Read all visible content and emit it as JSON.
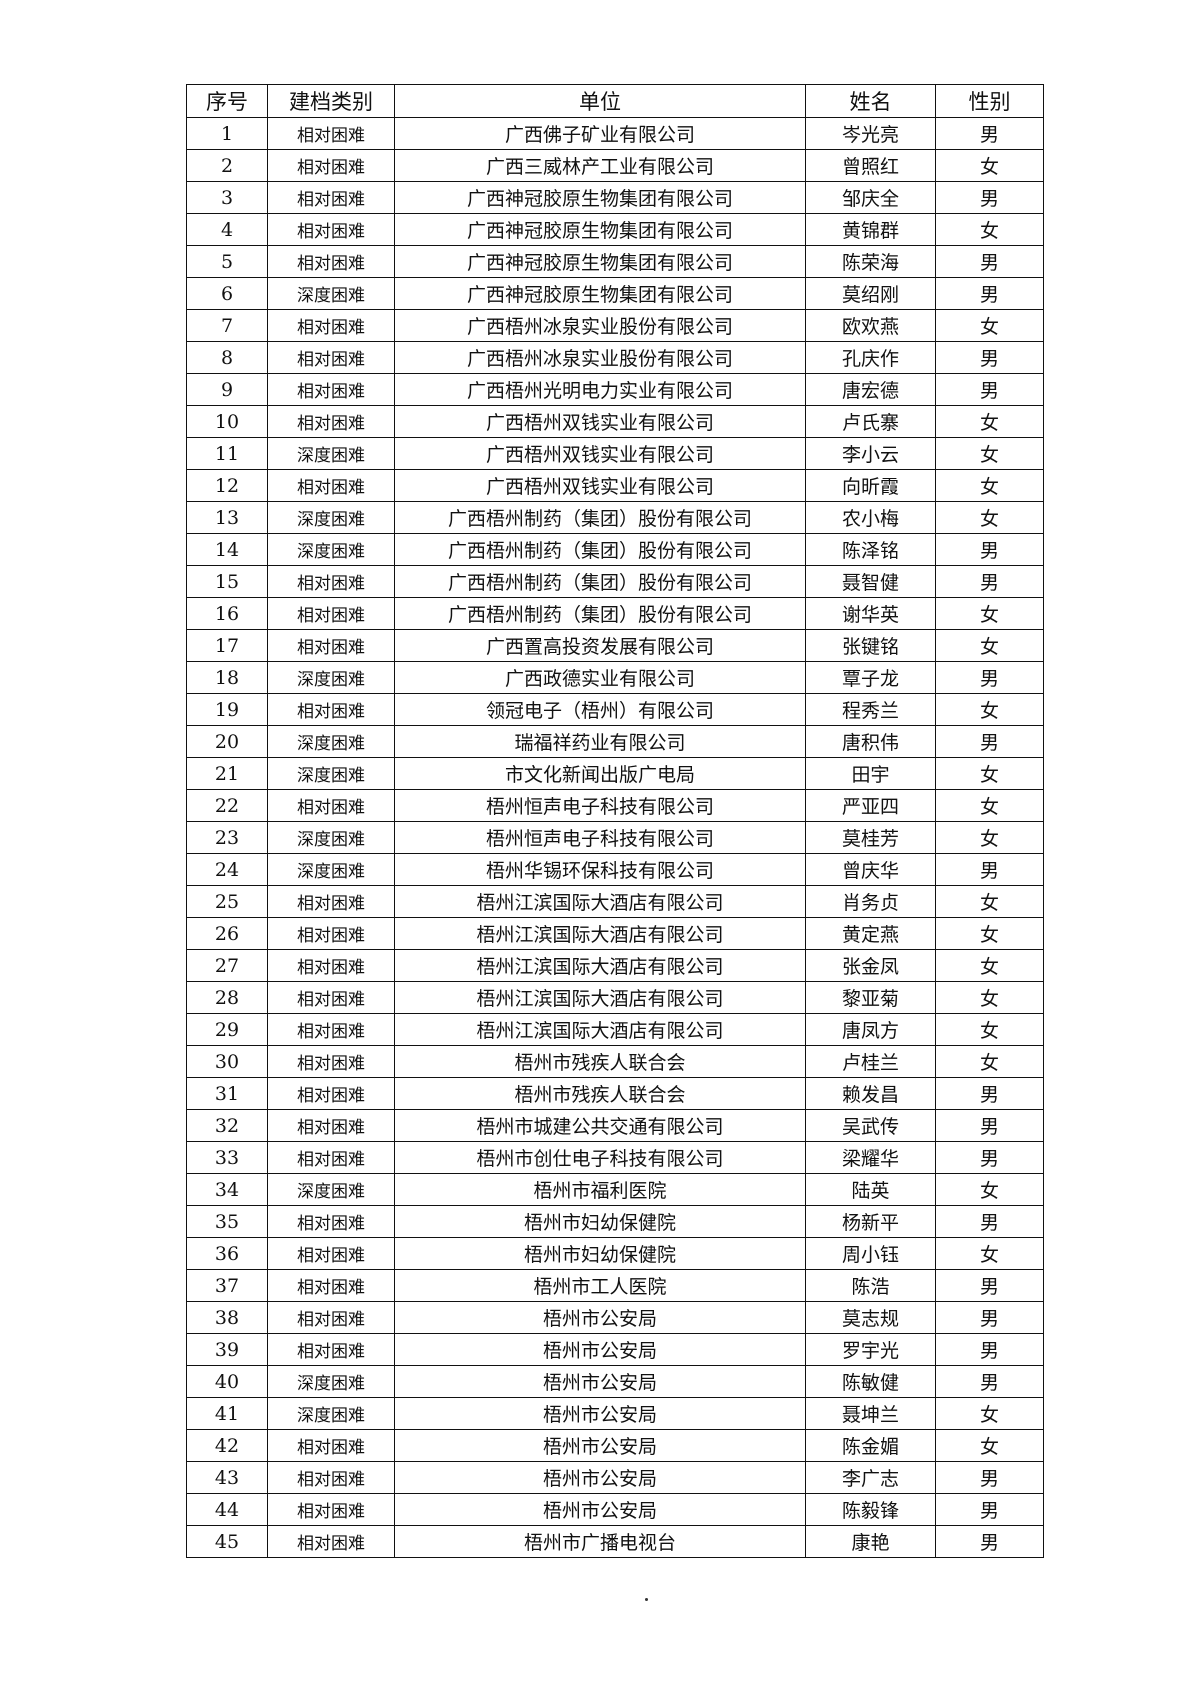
{
  "table": {
    "headers": [
      "序号",
      "建档类别",
      "单位",
      "姓名",
      "性别"
    ],
    "rows": [
      [
        "1",
        "相对困难",
        "广西佛子矿业有限公司",
        "岑光亮",
        "男"
      ],
      [
        "2",
        "相对困难",
        "广西三威林产工业有限公司",
        "曾照红",
        "女"
      ],
      [
        "3",
        "相对困难",
        "广西神冠胶原生物集团有限公司",
        "邹庆全",
        "男"
      ],
      [
        "4",
        "相对困难",
        "广西神冠胶原生物集团有限公司",
        "黄锦群",
        "女"
      ],
      [
        "5",
        "相对困难",
        "广西神冠胶原生物集团有限公司",
        "陈荣海",
        "男"
      ],
      [
        "6",
        "深度困难",
        "广西神冠胶原生物集团有限公司",
        "莫绍刚",
        "男"
      ],
      [
        "7",
        "相对困难",
        "广西梧州冰泉实业股份有限公司",
        "欧欢燕",
        "女"
      ],
      [
        "8",
        "相对困难",
        "广西梧州冰泉实业股份有限公司",
        "孔庆作",
        "男"
      ],
      [
        "9",
        "相对困难",
        "广西梧州光明电力实业有限公司",
        "唐宏德",
        "男"
      ],
      [
        "10",
        "相对困难",
        "广西梧州双钱实业有限公司",
        "卢氏寨",
        "女"
      ],
      [
        "11",
        "深度困难",
        "广西梧州双钱实业有限公司",
        "李小云",
        "女"
      ],
      [
        "12",
        "相对困难",
        "广西梧州双钱实业有限公司",
        "向昕霞",
        "女"
      ],
      [
        "13",
        "深度困难",
        "广西梧州制药（集团）股份有限公司",
        "农小梅",
        "女"
      ],
      [
        "14",
        "深度困难",
        "广西梧州制药（集团）股份有限公司",
        "陈泽铭",
        "男"
      ],
      [
        "15",
        "相对困难",
        "广西梧州制药（集团）股份有限公司",
        "聂智健",
        "男"
      ],
      [
        "16",
        "相对困难",
        "广西梧州制药（集团）股份有限公司",
        "谢华英",
        "女"
      ],
      [
        "17",
        "相对困难",
        "广西置高投资发展有限公司",
        "张键铭",
        "女"
      ],
      [
        "18",
        "深度困难",
        "广西政德实业有限公司",
        "覃子龙",
        "男"
      ],
      [
        "19",
        "相对困难",
        "领冠电子（梧州）有限公司",
        "程秀兰",
        "女"
      ],
      [
        "20",
        "深度困难",
        "瑞福祥药业有限公司",
        "唐积伟",
        "男"
      ],
      [
        "21",
        "深度困难",
        "市文化新闻出版广电局",
        "田宇",
        "女"
      ],
      [
        "22",
        "相对困难",
        "梧州恒声电子科技有限公司",
        "严亚四",
        "女"
      ],
      [
        "23",
        "深度困难",
        "梧州恒声电子科技有限公司",
        "莫桂芳",
        "女"
      ],
      [
        "24",
        "深度困难",
        "梧州华锡环保科技有限公司",
        "曾庆华",
        "男"
      ],
      [
        "25",
        "相对困难",
        "梧州江滨国际大酒店有限公司",
        "肖务贞",
        "女"
      ],
      [
        "26",
        "相对困难",
        "梧州江滨国际大酒店有限公司",
        "黄定燕",
        "女"
      ],
      [
        "27",
        "相对困难",
        "梧州江滨国际大酒店有限公司",
        "张金凤",
        "女"
      ],
      [
        "28",
        "相对困难",
        "梧州江滨国际大酒店有限公司",
        "黎亚菊",
        "女"
      ],
      [
        "29",
        "相对困难",
        "梧州江滨国际大酒店有限公司",
        "唐凤方",
        "女"
      ],
      [
        "30",
        "相对困难",
        "梧州市残疾人联合会",
        "卢桂兰",
        "女"
      ],
      [
        "31",
        "相对困难",
        "梧州市残疾人联合会",
        "赖发昌",
        "男"
      ],
      [
        "32",
        "相对困难",
        "梧州市城建公共交通有限公司",
        "吴武传",
        "男"
      ],
      [
        "33",
        "相对困难",
        "梧州市创仕电子科技有限公司",
        "梁耀华",
        "男"
      ],
      [
        "34",
        "深度困难",
        "梧州市福利医院",
        "陆英",
        "女"
      ],
      [
        "35",
        "相对困难",
        "梧州市妇幼保健院",
        "杨新平",
        "男"
      ],
      [
        "36",
        "相对困难",
        "梧州市妇幼保健院",
        "周小钰",
        "女"
      ],
      [
        "37",
        "相对困难",
        "梧州市工人医院",
        "陈浩",
        "男"
      ],
      [
        "38",
        "相对困难",
        "梧州市公安局",
        "莫志规",
        "男"
      ],
      [
        "39",
        "相对困难",
        "梧州市公安局",
        "罗宇光",
        "男"
      ],
      [
        "40",
        "深度困难",
        "梧州市公安局",
        "陈敏健",
        "男"
      ],
      [
        "41",
        "深度困难",
        "梧州市公安局",
        "聂坤兰",
        "女"
      ],
      [
        "42",
        "相对困难",
        "梧州市公安局",
        "陈金媚",
        "女"
      ],
      [
        "43",
        "相对困难",
        "梧州市公安局",
        "李广志",
        "男"
      ],
      [
        "44",
        "相对困难",
        "梧州市公安局",
        "陈毅锋",
        "男"
      ],
      [
        "45",
        "相对困难",
        "梧州市广播电视台",
        "康艳",
        "男"
      ]
    ]
  }
}
